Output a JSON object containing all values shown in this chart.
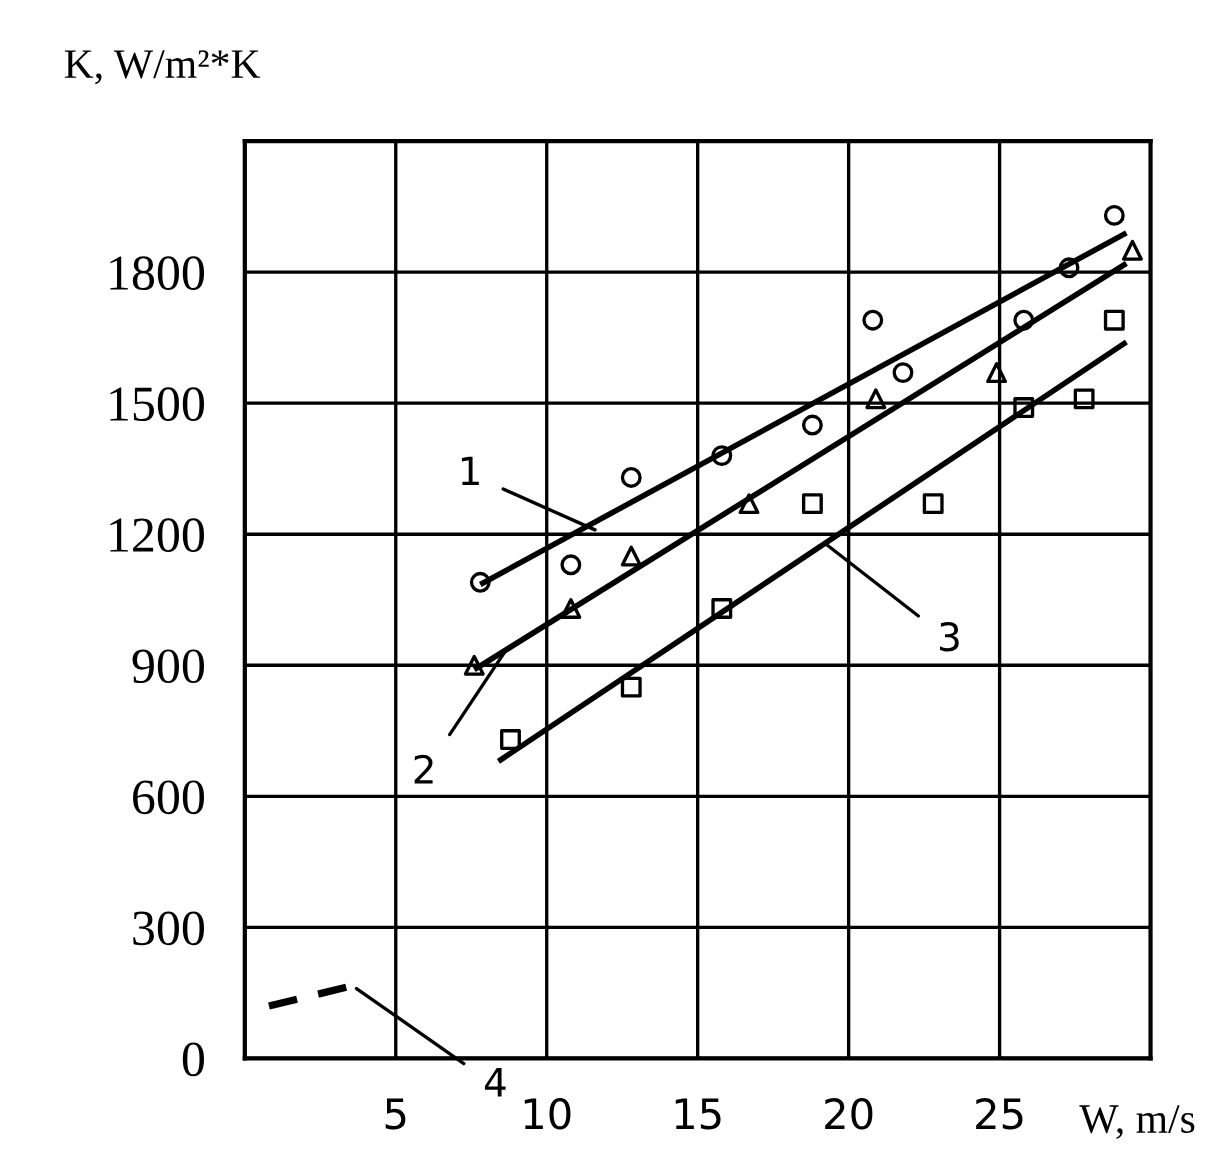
{
  "chart_data": {
    "type": "scatter",
    "xlabel": "W, m/s",
    "ylabel": "K, W/m²*K",
    "xlim": [
      0,
      30
    ],
    "ylim": [
      0,
      2100
    ],
    "xticks": [
      {
        "value": 0,
        "label": null
      },
      5,
      10,
      15,
      20,
      25,
      {
        "value": 30,
        "label": null
      }
    ],
    "yticks": [
      0,
      300,
      600,
      900,
      1200,
      1500,
      1800,
      {
        "value": 2100,
        "label": null
      }
    ],
    "grid": true,
    "series": [
      {
        "marker": "circle",
        "color": "#000000",
        "x": [
          7.8,
          10.8,
          12.8,
          15.8,
          18.8,
          20.8,
          21.8,
          25.8,
          27.3,
          28.8
        ],
        "values": [
          1090,
          1130,
          1330,
          1380,
          1450,
          1690,
          1570,
          1690,
          1810,
          1930
        ]
      },
      {
        "marker": "triangle",
        "color": "#000000",
        "x": [
          7.6,
          10.8,
          12.8,
          16.7,
          20.9,
          24.9,
          29.4
        ],
        "values": [
          900,
          1030,
          1150,
          1270,
          1510,
          1570,
          1850
        ]
      },
      {
        "marker": "square",
        "color": "#000000",
        "x": [
          8.8,
          12.8,
          15.8,
          18.8,
          22.8,
          25.8,
          27.8,
          28.8
        ],
        "values": [
          730,
          850,
          1030,
          1270,
          1270,
          1490,
          1510,
          1690
        ]
      },
      {
        "type": "line",
        "line_style": "solid",
        "color": "#000000",
        "x": [
          7.8,
          29.2
        ],
        "values": [
          1085,
          1890
        ]
      },
      {
        "type": "line",
        "line_style": "solid",
        "color": "#000000",
        "x": [
          7.6,
          29.2
        ],
        "values": [
          890,
          1820
        ]
      },
      {
        "type": "line",
        "line_style": "solid",
        "color": "#000000",
        "x": [
          8.4,
          29.2
        ],
        "values": [
          680,
          1640
        ]
      },
      {
        "type": "line",
        "line_style": "dashed",
        "color": "#000000",
        "x": [
          0.8,
          3.8
        ],
        "values": [
          120,
          170
        ]
      }
    ],
    "annotations": [
      {
        "text": "1",
        "x": 11.6,
        "y": 1210
      },
      {
        "text": "2",
        "x": 8.7,
        "y": 940
      },
      {
        "text": "3",
        "x": 19.2,
        "y": 1180
      },
      {
        "text": "4",
        "x": 3.7,
        "y": 160
      }
    ]
  }
}
